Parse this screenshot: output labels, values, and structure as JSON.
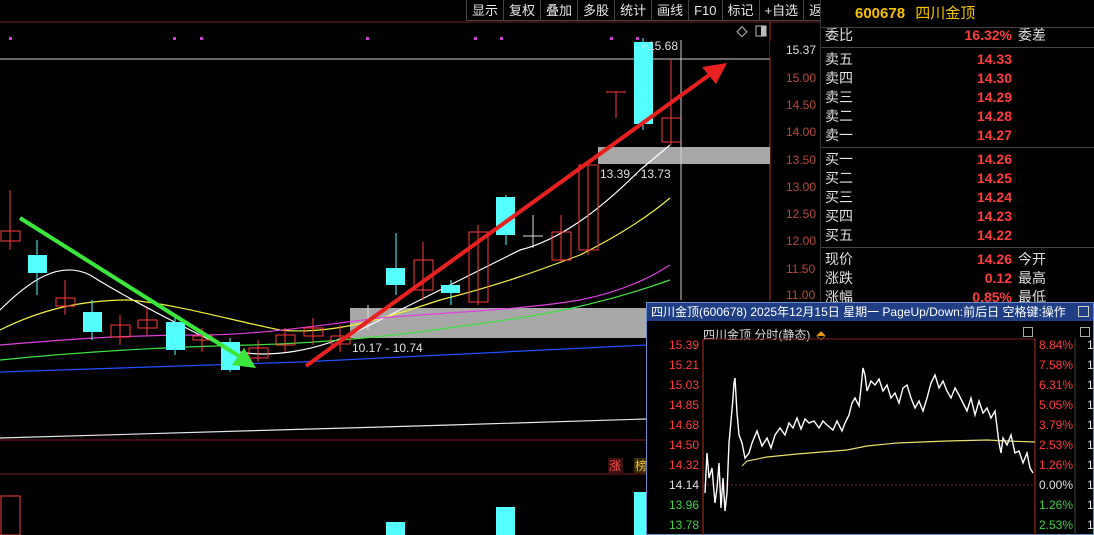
{
  "toolbar": {
    "items": [
      "显示",
      "复权",
      "叠加",
      "多股",
      "统计",
      "画线",
      "F10",
      "标记",
      "+自选",
      "返回"
    ]
  },
  "main_chart": {
    "y_axis_labels": [
      "15.37",
      "15.00",
      "14.50",
      "14.00",
      "13.50",
      "13.00",
      "12.50",
      "12.00",
      "11.50",
      "11.00"
    ],
    "high_label": "15.68",
    "zone_upper_label": "13.39 - 13.73",
    "zone_lower_label": "10.17 - 10.74",
    "badge_1": "涨",
    "badge_2": "榜"
  },
  "quote": {
    "code": "600678",
    "name": "四川金顶",
    "weibi_label": "委比",
    "weibi_value": "16.32%",
    "weicha_label": "委差",
    "asks": [
      {
        "label": "卖五",
        "price": "14.33"
      },
      {
        "label": "卖四",
        "price": "14.30"
      },
      {
        "label": "卖三",
        "price": "14.29"
      },
      {
        "label": "卖二",
        "price": "14.28"
      },
      {
        "label": "卖一",
        "price": "14.27"
      }
    ],
    "bids": [
      {
        "label": "买一",
        "price": "14.26"
      },
      {
        "label": "买二",
        "price": "14.25"
      },
      {
        "label": "买三",
        "price": "14.24"
      },
      {
        "label": "买四",
        "price": "14.23"
      },
      {
        "label": "买五",
        "price": "14.22"
      }
    ],
    "stats": [
      {
        "label": "现价",
        "value": "14.26",
        "label2": "今开"
      },
      {
        "label": "涨跌",
        "value": "0.12",
        "label2": "最高"
      },
      {
        "label": "涨幅",
        "value": "0.85%",
        "label2": "最低"
      }
    ]
  },
  "popup": {
    "title": "四川金顶(600678) 2025年12月15日 星期一 PageUp/Down:前后日 空格键:操作",
    "subtitle": "四川金顶  分时(静态)",
    "left_axis": [
      "15.39",
      "15.21",
      "15.03",
      "14.85",
      "14.68",
      "14.50",
      "14.32",
      "14.14",
      "13.96",
      "13.78"
    ],
    "right_axis": [
      "8.84%",
      "7.58%",
      "6.31%",
      "5.05%",
      "3.79%",
      "2.53%",
      "1.26%",
      "0.00%",
      "1.26%",
      "2.53%"
    ],
    "far_right_digits": [
      "1",
      "1",
      "1",
      "1",
      "1",
      "1",
      "1",
      "1",
      "1",
      "1"
    ]
  },
  "colors": {
    "up": "#ff3d3d",
    "down": "#54ffff",
    "axis": "#b0301f",
    "green_arrow": "#3ce63c",
    "red_arrow": "#e82020"
  }
}
